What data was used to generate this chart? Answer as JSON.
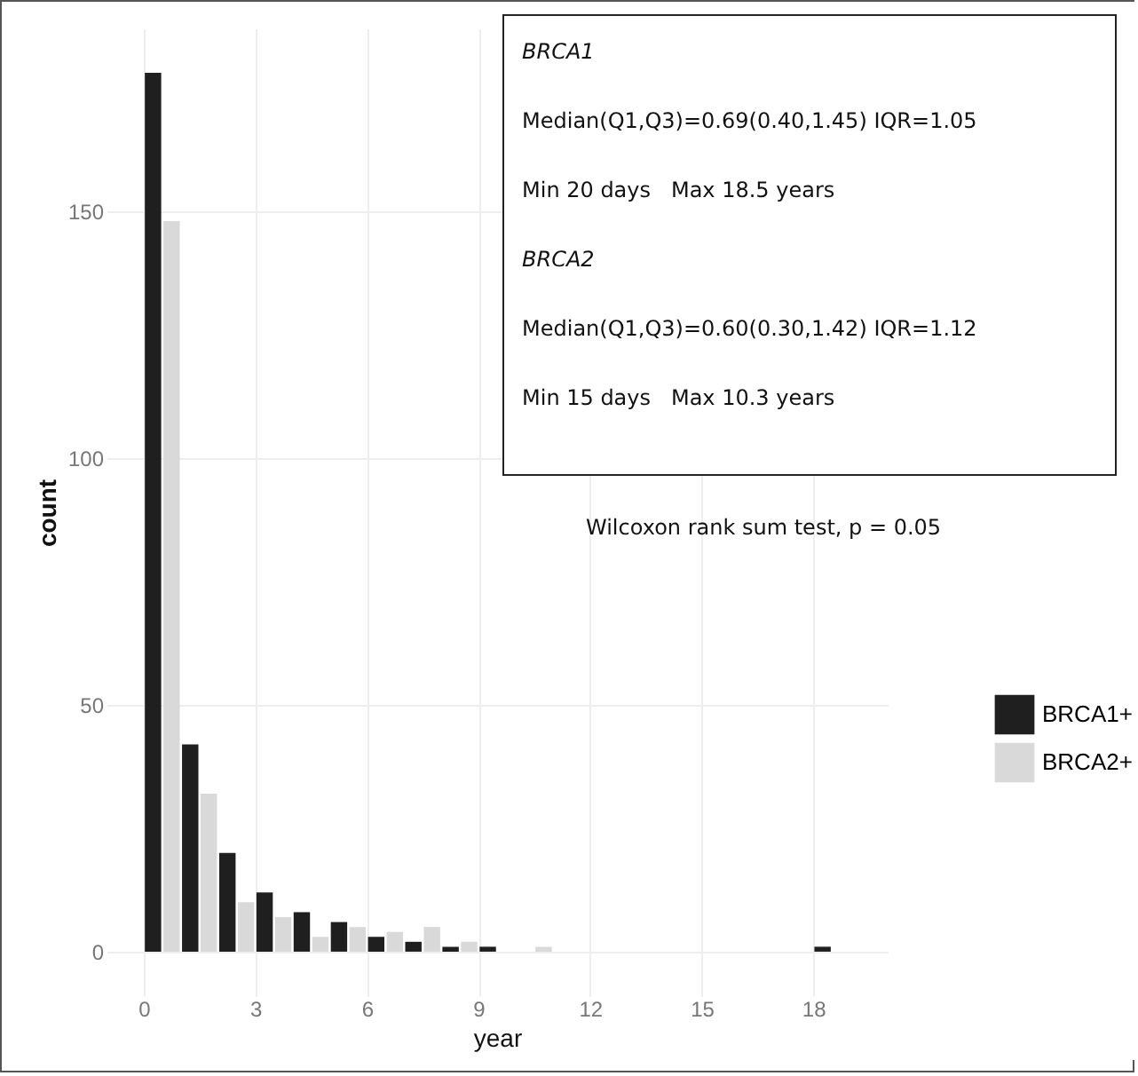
{
  "chart_data": {
    "type": "histogram",
    "xlabel": "year",
    "ylabel": "count",
    "bins": [
      0,
      1,
      2,
      3,
      4,
      5,
      6,
      7,
      8,
      9,
      10,
      11,
      12,
      13,
      14,
      15,
      16,
      17,
      18,
      19
    ],
    "series": [
      {
        "name": "BRCA1+",
        "color": "#1f1f1f",
        "values": [
          178,
          42,
          20,
          12,
          8,
          6,
          3,
          2,
          1,
          1,
          0,
          0,
          0,
          0,
          0,
          0,
          0,
          0,
          1
        ]
      },
      {
        "name": "BRCA2+",
        "color": "#d9d9d9",
        "values": [
          148,
          32,
          10,
          7,
          3,
          5,
          4,
          5,
          2,
          0,
          1,
          0,
          0,
          0,
          0,
          0,
          0,
          0,
          0
        ]
      }
    ],
    "xlim": [
      -1,
      20
    ],
    "xticks": [
      0,
      3,
      6,
      9,
      12,
      15,
      18
    ],
    "ylim": [
      -9,
      187
    ],
    "yticks": [
      0,
      50,
      100,
      150
    ],
    "grid": true,
    "legend": "right",
    "annotations": [
      "BRCA1",
      "Median(Q1,Q3)=0.69(0.40,1.45) IQR=1.05",
      "Min 20 days   Max 18.5 years",
      "BRCA2",
      "Median(Q1,Q3)=0.60(0.30,1.42) IQR=1.12",
      "Min 15 days   Max 10.3 years",
      "Wilcoxon rank sum test, p = 0.05"
    ]
  }
}
